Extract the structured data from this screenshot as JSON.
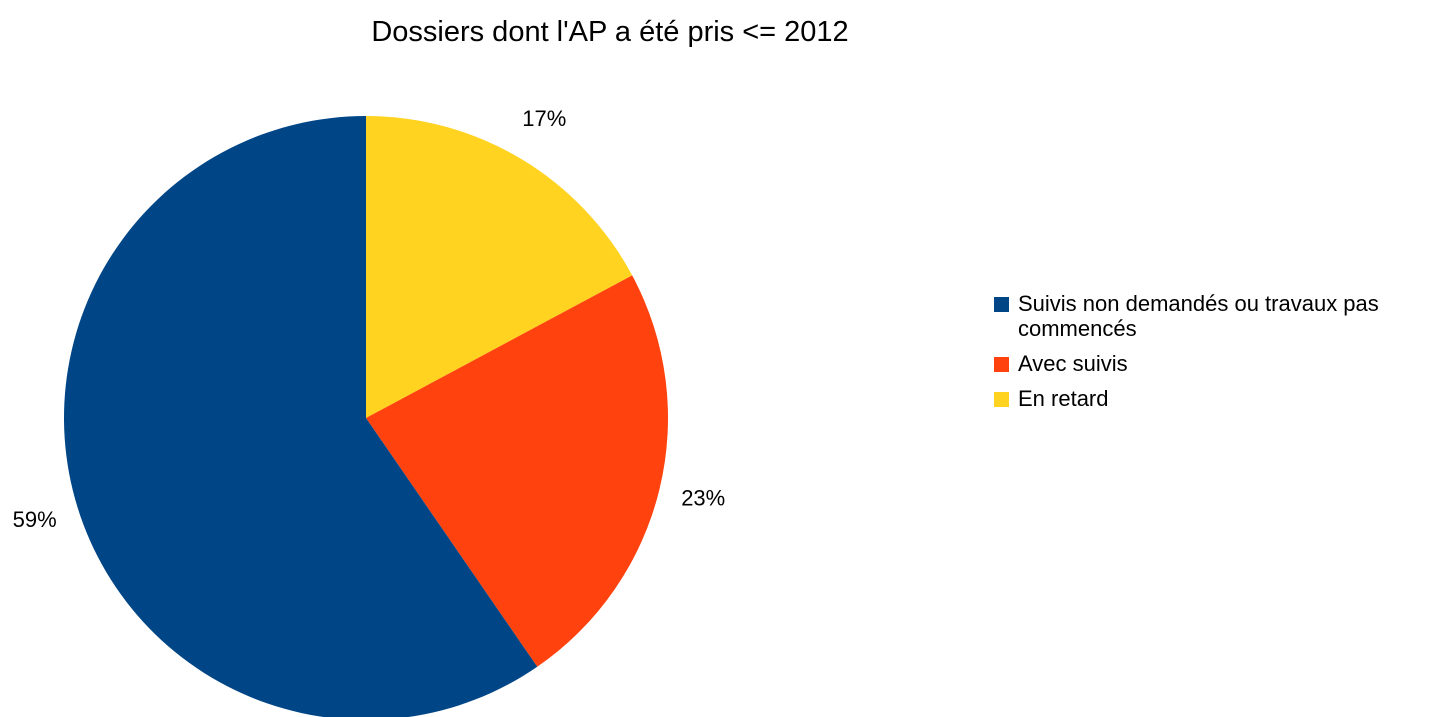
{
  "chart_data": {
    "type": "pie",
    "title": "Dossiers dont l'AP a été pris <= 2012",
    "legend_position": "right",
    "slices": [
      {
        "label": "Suivis non demandés ou travaux pas commencés",
        "value": 59,
        "display": "59%",
        "color": "#004586"
      },
      {
        "label": "Avec suivis",
        "value": 23,
        "display": "23%",
        "color": "#ff420e"
      },
      {
        "label": "En retard",
        "value": 17,
        "display": "17%",
        "color": "#ffd320"
      }
    ]
  }
}
